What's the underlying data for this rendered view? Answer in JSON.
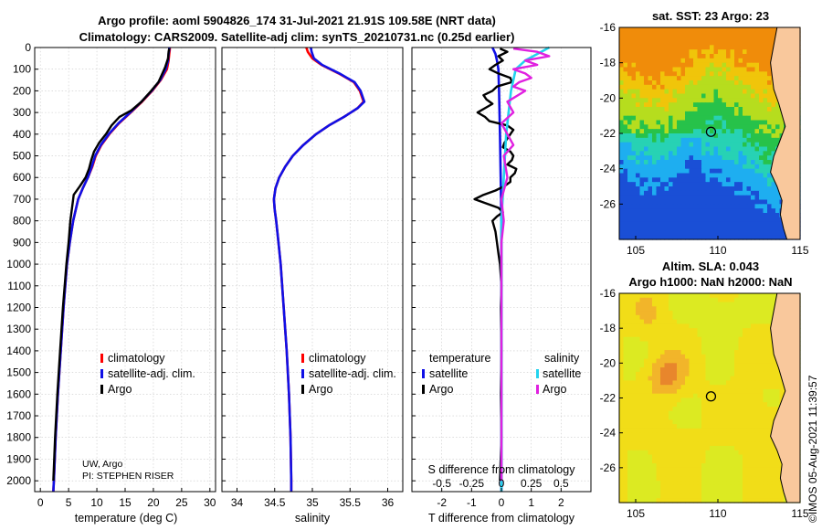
{
  "header": {
    "title_line1": "Argo profile: aoml 5904826_174 31-Jul-2021 21.91S 109.58E (NRT data)",
    "title_line2": "Climatology: CARS2009. Satellite-adj clim: synTS_20210731.nc (0.25d earlier)"
  },
  "credit": {
    "line1": "UW, Argo",
    "line2": "PI: STEPHEN RISER"
  },
  "timestamp": "©IMOS 05-Aug-2021 11:39:57",
  "colors": {
    "climatology": "#ff0000",
    "satellite": "#1010e6",
    "argo": "#000000",
    "sat_salinity": "#22d3ee",
    "argo_salinity": "#e020e0"
  },
  "chart_data": [
    {
      "id": "temperature",
      "type": "line",
      "xlabel": "temperature (deg C)",
      "xlim": [
        -1,
        31
      ],
      "xticks": [
        0,
        5,
        10,
        15,
        20,
        25,
        30
      ],
      "ylim": [
        0,
        2050
      ],
      "yticks": [
        0,
        100,
        200,
        300,
        400,
        500,
        600,
        700,
        800,
        900,
        1000,
        1100,
        1200,
        1300,
        1400,
        1500,
        1600,
        1700,
        1800,
        1900,
        2000
      ],
      "legend": [
        "climatology",
        "satellite-adj. clim.",
        "Argo"
      ],
      "series": [
        {
          "name": "climatology",
          "depth": [
            0,
            10,
            30,
            60,
            100,
            150,
            200,
            250,
            300,
            350,
            400,
            450,
            500,
            550,
            600,
            650,
            700,
            800,
            900,
            1000,
            1200,
            1400,
            1600,
            1800,
            2000,
            2050
          ],
          "values": [
            22.9,
            22.9,
            22.8,
            22.7,
            22.4,
            21.3,
            19.8,
            18.0,
            16.0,
            13.9,
            12.2,
            10.8,
            9.8,
            9.2,
            8.4,
            7.5,
            6.7,
            5.8,
            5.2,
            4.7,
            4.1,
            3.6,
            3.1,
            2.7,
            2.4,
            2.3
          ]
        },
        {
          "name": "satellite-adj. clim.",
          "depth": [
            0,
            10,
            30,
            60,
            100,
            150,
            200,
            250,
            300,
            350,
            400,
            450,
            500,
            550,
            600,
            650,
            700,
            800,
            900,
            1000,
            1200,
            1400,
            1600,
            1800,
            2000,
            2050
          ],
          "values": [
            22.8,
            22.8,
            22.7,
            22.6,
            22.2,
            21.2,
            19.7,
            17.9,
            15.9,
            13.8,
            12.1,
            10.7,
            9.7,
            9.1,
            8.4,
            7.5,
            6.7,
            5.8,
            5.2,
            4.7,
            4.1,
            3.6,
            3.1,
            2.7,
            2.4,
            2.3
          ]
        },
        {
          "name": "Argo",
          "depth": [
            5,
            20,
            50,
            90,
            120,
            160,
            200,
            250,
            290,
            320,
            360,
            400,
            440,
            480,
            520,
            560,
            600,
            640,
            680,
            720,
            800,
            900,
            1000,
            1200,
            1400,
            1600,
            1800,
            2000
          ],
          "values": [
            22.8,
            22.7,
            22.6,
            22.1,
            21.6,
            20.9,
            19.6,
            17.9,
            16.1,
            14.0,
            12.6,
            11.6,
            10.4,
            9.5,
            9.0,
            8.6,
            8.0,
            7.0,
            5.9,
            5.7,
            5.3,
            5.0,
            4.6,
            4.0,
            3.5,
            3.0,
            2.6,
            2.3
          ]
        }
      ]
    },
    {
      "id": "salinity",
      "type": "line",
      "xlabel": "salinity",
      "xlim": [
        33.8,
        36.2
      ],
      "xticks": [
        34,
        34.5,
        35,
        35.5,
        36
      ],
      "ylim": [
        0,
        2050
      ],
      "legend": [
        "climatology",
        "satellite-adj. clim.",
        "Argo"
      ],
      "series": [
        {
          "name": "climatology",
          "depth": [
            0,
            20,
            50,
            80,
            120,
            160,
            200,
            250,
            280,
            320,
            360,
            400,
            450,
            500,
            550,
            600,
            650,
            700,
            750,
            800,
            900,
            1000,
            1200,
            1400,
            1600,
            1800,
            2000,
            2050
          ],
          "values": [
            34.92,
            34.94,
            35.0,
            35.12,
            35.35,
            35.55,
            35.63,
            35.68,
            35.6,
            35.42,
            35.22,
            35.05,
            34.88,
            34.74,
            34.64,
            34.56,
            34.51,
            34.49,
            34.5,
            34.52,
            34.55,
            34.58,
            34.62,
            34.66,
            34.69,
            34.71,
            34.72,
            34.72
          ]
        },
        {
          "name": "satellite-adj. clim.",
          "depth": [
            0,
            20,
            50,
            80,
            120,
            160,
            200,
            250,
            280,
            320,
            360,
            400,
            450,
            500,
            550,
            600,
            650,
            700,
            750,
            800,
            900,
            1000,
            1200,
            1400,
            1600,
            1800,
            2000,
            2050
          ],
          "values": [
            34.98,
            34.99,
            35.02,
            35.13,
            35.36,
            35.56,
            35.64,
            35.69,
            35.6,
            35.42,
            35.22,
            35.05,
            34.88,
            34.74,
            34.64,
            34.56,
            34.51,
            34.49,
            34.5,
            34.52,
            34.55,
            34.58,
            34.62,
            34.66,
            34.69,
            34.71,
            34.72,
            34.72
          ]
        }
      ]
    },
    {
      "id": "difference",
      "type": "line",
      "xlabel": "T difference from climatology",
      "xlabel2": "S difference from climatology",
      "xlim": [
        -3,
        3
      ],
      "xticks": [
        -2,
        -1,
        0,
        1,
        2
      ],
      "s_ticks": [
        "-0.5",
        "-0.25",
        "0",
        "0.25",
        "0.5"
      ],
      "ylim": [
        0,
        2050
      ],
      "legend": {
        "temperature_head": "temperature",
        "salinity_head": "salinity",
        "sat_t": "satellite",
        "argo_t": "Argo",
        "sat_s": "satellite",
        "argo_s": "Argo"
      },
      "series": [
        {
          "name": "satellite temperature",
          "depth": [
            0,
            30,
            60,
            100,
            200,
            400,
            800,
            2050
          ],
          "values": [
            -0.3,
            -0.2,
            -0.15,
            -0.1,
            -0.08,
            -0.05,
            0,
            0
          ]
        },
        {
          "name": "Argo temperature",
          "depth": [
            5,
            20,
            40,
            60,
            80,
            100,
            120,
            140,
            160,
            180,
            200,
            220,
            240,
            260,
            280,
            300,
            320,
            340,
            360,
            380,
            400,
            420,
            440,
            460,
            480,
            500,
            520,
            540,
            560,
            580,
            600,
            620,
            640,
            660,
            680,
            700,
            720,
            740,
            760,
            780,
            800,
            850,
            900,
            950,
            1000,
            1100,
            1200,
            1400,
            1600,
            1800,
            2000
          ],
          "values": [
            -0.05,
            0.2,
            -0.1,
            0.05,
            -0.2,
            -0.4,
            -0.1,
            0.3,
            0.35,
            -0.15,
            -0.3,
            -0.6,
            -0.5,
            -0.3,
            -0.55,
            -0.8,
            -0.55,
            -0.4,
            0.2,
            0.4,
            0.3,
            0.2,
            0.1,
            0.05,
            0.3,
            0.4,
            0.35,
            0.2,
            0.5,
            0.45,
            0.3,
            0.3,
            0.1,
            -0.2,
            -0.6,
            -0.9,
            -0.5,
            -0.1,
            0.05,
            -0.15,
            -0.3,
            -0.2,
            -0.15,
            -0.1,
            -0.05,
            0.0,
            -0.02,
            0.0,
            -0.02,
            0.0,
            -0.05
          ]
        },
        {
          "name": "satellite salinity",
          "depth": [
            0,
            30,
            60,
            100,
            200,
            400,
            800,
            2050
          ],
          "values": [
            0.4,
            0.3,
            0.2,
            0.12,
            0.08,
            0.04,
            0,
            0
          ]
        },
        {
          "name": "Argo salinity",
          "depth": [
            5,
            20,
            40,
            60,
            80,
            100,
            120,
            140,
            160,
            180,
            200,
            250,
            300,
            350,
            400,
            450,
            500,
            600,
            700,
            800,
            900,
            1000,
            1200,
            1400,
            1600,
            1800,
            2000
          ],
          "values": [
            0.1,
            0.3,
            0.4,
            0.2,
            0.3,
            0.1,
            0.2,
            0.25,
            0.15,
            0.1,
            0.2,
            0.05,
            0.1,
            0.0,
            0.05,
            0.1,
            0.02,
            0.05,
            0.0,
            0.02,
            0.0,
            0.0,
            0.0,
            0.0,
            0.0,
            0.0,
            0.0
          ]
        }
      ]
    },
    {
      "id": "sst-map",
      "type": "heatmap",
      "title": "sat. SST: 23 Argo: 23",
      "xlim": [
        104,
        115
      ],
      "ylim": [
        -28,
        -16
      ],
      "xticks": [
        105,
        110,
        115
      ],
      "yticks": [
        -16,
        -18,
        -20,
        -22,
        -24,
        -26
      ],
      "marker": {
        "lon": 109.58,
        "lat": -21.91
      }
    },
    {
      "id": "sla-map",
      "type": "heatmap",
      "title_line1": "Altim. SLA: 0.043",
      "title_line2": "Argo h1000: NaN h2000: NaN",
      "xlim": [
        104,
        115
      ],
      "ylim": [
        -28,
        -16
      ],
      "xticks": [
        105,
        110,
        115
      ],
      "yticks": [
        -16,
        -18,
        -20,
        -22,
        -24,
        -26
      ],
      "marker": {
        "lon": 109.58,
        "lat": -21.91
      }
    }
  ]
}
